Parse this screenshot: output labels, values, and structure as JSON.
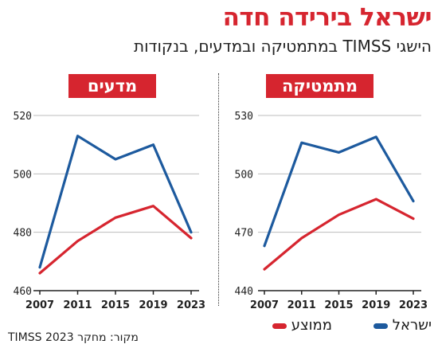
{
  "header": {
    "title": "ישראל בירידה חדה",
    "subtitle": "הישגי TIMSS במתמטיקה ובמדעים, בנקודות"
  },
  "legend": {
    "israel": "ישראל",
    "average": "ממוצע"
  },
  "source": "מקור: מחקר TIMSS 2023",
  "colors": {
    "israel": "#1d5a9e",
    "average": "#d6252f",
    "title": "#d6252f"
  },
  "chart_data": [
    {
      "type": "line",
      "title": "מדעים",
      "x": [
        "2007",
        "2011",
        "2015",
        "2019",
        "2023"
      ],
      "yticks": [
        460,
        480,
        500,
        520
      ],
      "ylim": [
        460,
        520
      ],
      "grid": true,
      "series": [
        {
          "name": "ישראל",
          "values": [
            468,
            513,
            505,
            510,
            480
          ]
        },
        {
          "name": "ממוצע",
          "values": [
            466,
            477,
            485,
            489,
            478
          ]
        }
      ]
    },
    {
      "type": "line",
      "title": "מתמטיקה",
      "x": [
        "2007",
        "2011",
        "2015",
        "2019",
        "2023"
      ],
      "yticks": [
        440,
        470,
        500,
        530
      ],
      "ylim": [
        440,
        530
      ],
      "grid": true,
      "series": [
        {
          "name": "ישראל",
          "values": [
            463,
            516,
            511,
            519,
            486
          ]
        },
        {
          "name": "ממוצע",
          "values": [
            451,
            467,
            479,
            487,
            477
          ]
        }
      ]
    }
  ]
}
